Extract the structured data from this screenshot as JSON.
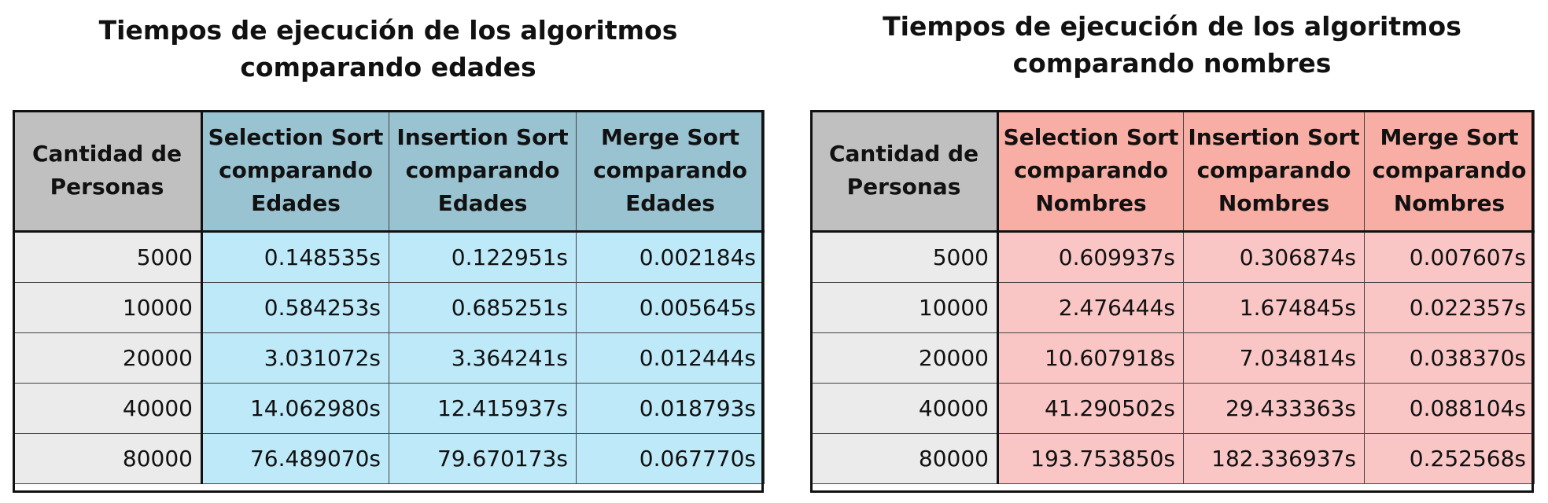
{
  "tables": [
    {
      "title_line1": "Tiempos de ejecución de los algoritmos",
      "title_line2": "comparando edades",
      "colors": {
        "header_first": "#c0c0c0",
        "header": "#9ac3d2",
        "body_first": "#ebebeb",
        "body": "#bde9f8"
      },
      "headers": [
        [
          "Cantidad de",
          "Personas",
          ""
        ],
        [
          "Selection Sort",
          "comparando",
          "Edades"
        ],
        [
          "Insertion Sort",
          "comparando",
          "Edades"
        ],
        [
          "Merge Sort",
          "comparando",
          "Edades"
        ]
      ],
      "rows": [
        [
          "5000",
          "0.148535s",
          "0.122951s",
          "0.002184s"
        ],
        [
          "10000",
          "0.584253s",
          "0.685251s",
          "0.005645s"
        ],
        [
          "20000",
          "3.031072s",
          "3.364241s",
          "0.012444s"
        ],
        [
          "40000",
          "14.062980s",
          "12.415937s",
          "0.018793s"
        ],
        [
          "80000",
          "76.489070s",
          "79.670173s",
          "0.067770s"
        ]
      ]
    },
    {
      "title_line1": "Tiempos de ejecución de los algoritmos",
      "title_line2": "comparando nombres",
      "colors": {
        "header_first": "#c0c0c0",
        "header": "#f8aea4",
        "body_first": "#ebebeb",
        "body": "#f9c5c5"
      },
      "headers": [
        [
          "Cantidad de",
          "Personas",
          ""
        ],
        [
          "Selection Sort",
          "comparando",
          "Nombres"
        ],
        [
          "Insertion Sort",
          "comparando",
          "Nombres"
        ],
        [
          "Merge Sort",
          "comparando",
          "Nombres"
        ]
      ],
      "rows": [
        [
          "5000",
          "0.609937s",
          "0.306874s",
          "0.007607s"
        ],
        [
          "10000",
          "2.476444s",
          "1.674845s",
          "0.022357s"
        ],
        [
          "20000",
          "10.607918s",
          "7.034814s",
          "0.038370s"
        ],
        [
          "40000",
          "41.290502s",
          "29.433363s",
          "0.088104s"
        ],
        [
          "80000",
          "193.753850s",
          "182.336937s",
          "0.252568s"
        ]
      ]
    }
  ]
}
